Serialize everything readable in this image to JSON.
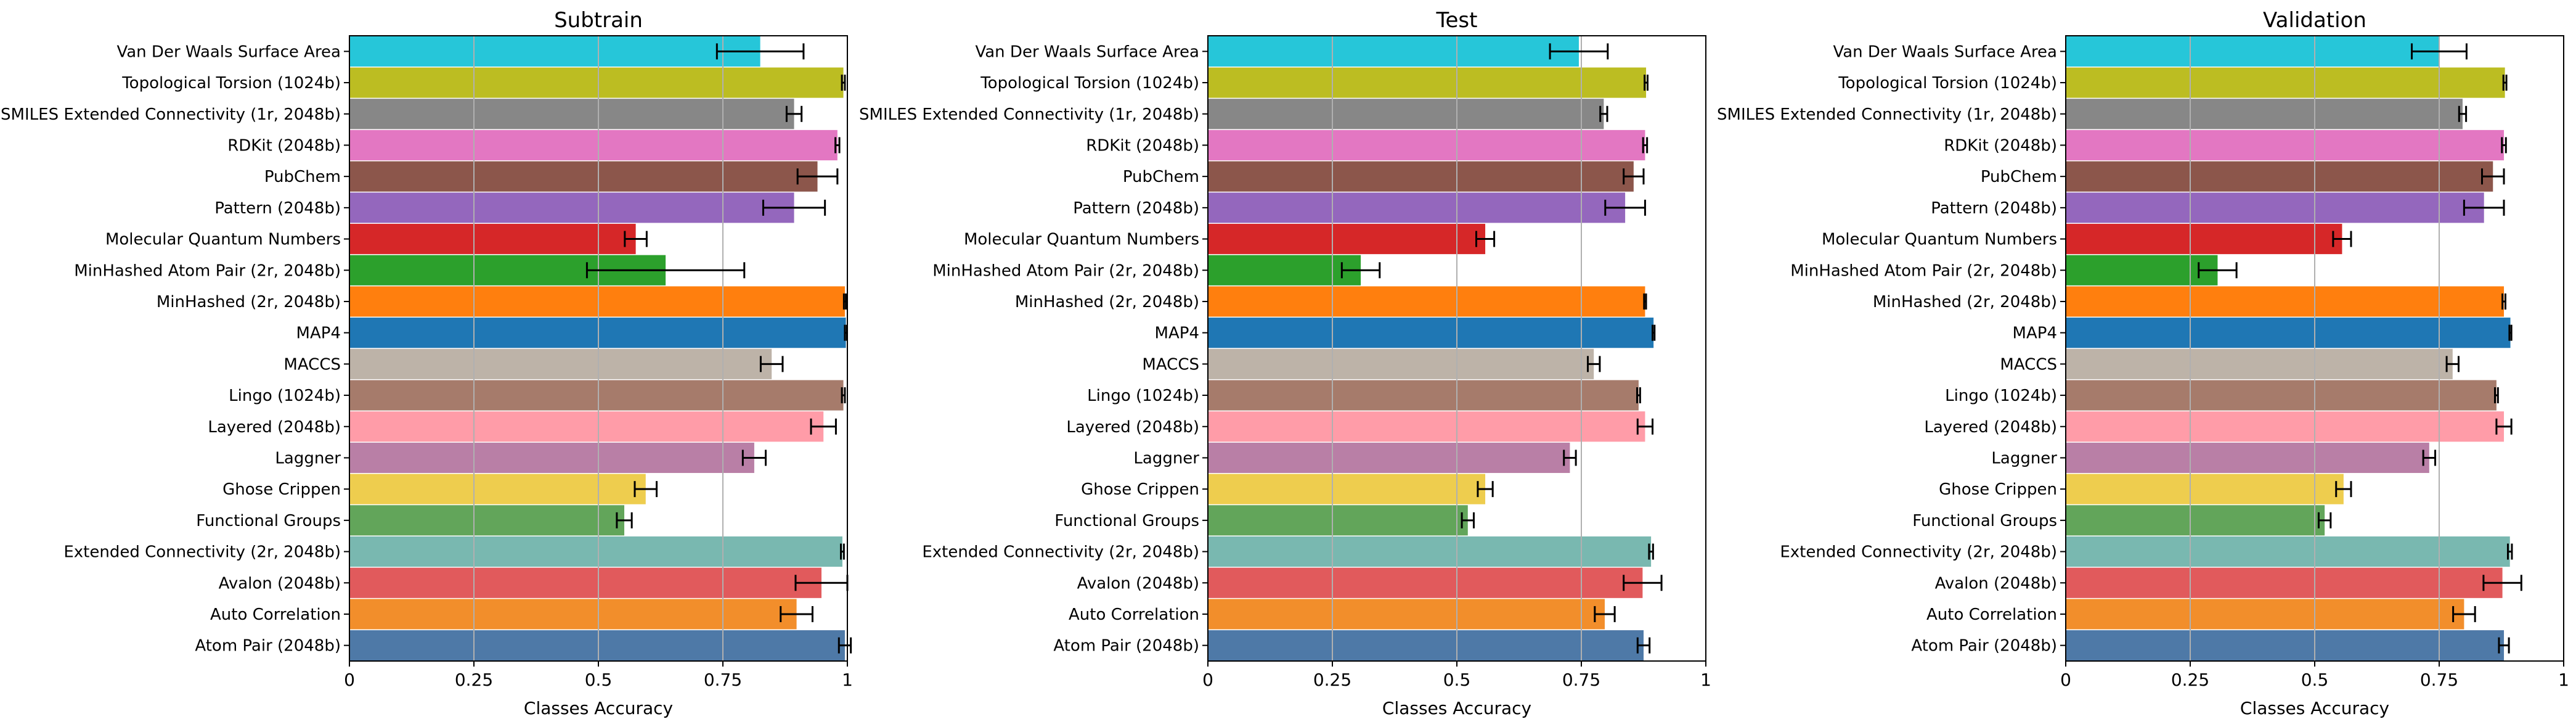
{
  "chart_data": {
    "type": "bar",
    "orientation": "horizontal",
    "xlim": [
      0,
      1
    ],
    "xticks": [
      "0",
      "0.25",
      "0.5",
      "0.75",
      "1"
    ],
    "xtick_values": [
      0,
      0.25,
      0.5,
      0.75,
      1
    ],
    "grid": "x",
    "categories": [
      "Van Der Waals Surface Area",
      "Topological Torsion (1024b)",
      "SMILES Extended Connectivity (1r, 2048b)",
      "RDKit (2048b)",
      "PubChem",
      "Pattern (2048b)",
      "Molecular Quantum Numbers",
      "MinHashed Atom Pair (2r, 2048b)",
      "MinHashed (2r, 2048b)",
      "MAP4",
      "MACCS",
      "Lingo (1024b)",
      "Layered (2048b)",
      "Laggner",
      "Ghose Crippen",
      "Functional Groups",
      "Extended Connectivity (2r, 2048b)",
      "Avalon (2048b)",
      "Auto Correlation",
      "Atom Pair (2048b)"
    ],
    "colors": [
      "#26c6d9",
      "#bcbd22",
      "#878787",
      "#e377c2",
      "#8c564b",
      "#9467bd",
      "#d62728",
      "#2ca02c",
      "#ff7f0e",
      "#1f77b4",
      "#bdb3a8",
      "#a67b6b",
      "#ff9ca8",
      "#b97fa6",
      "#eecd4e",
      "#62a55a",
      "#79b8b0",
      "#e15a5c",
      "#f28e2b",
      "#4e79a7"
    ],
    "panels": [
      {
        "title": "Subtrain",
        "xlabel": "Classes Accuracy",
        "values": [
          0.825,
          0.992,
          0.893,
          0.98,
          0.94,
          0.893,
          0.575,
          0.635,
          0.995,
          0.997,
          0.848,
          0.992,
          0.952,
          0.813,
          0.595,
          0.552,
          0.99,
          0.948,
          0.898,
          0.995
        ],
        "errors": [
          0.087,
          0.003,
          0.015,
          0.004,
          0.04,
          0.062,
          0.022,
          0.158,
          0.002,
          0.002,
          0.022,
          0.003,
          0.025,
          0.023,
          0.022,
          0.015,
          0.003,
          0.052,
          0.032,
          0.012
        ]
      },
      {
        "title": "Test",
        "xlabel": "Classes Accuracy",
        "values": [
          0.745,
          0.88,
          0.795,
          0.878,
          0.855,
          0.838,
          0.557,
          0.307,
          0.878,
          0.895,
          0.775,
          0.865,
          0.878,
          0.727,
          0.557,
          0.522,
          0.89,
          0.873,
          0.797,
          0.875
        ],
        "errors": [
          0.058,
          0.003,
          0.007,
          0.004,
          0.02,
          0.04,
          0.018,
          0.038,
          0.002,
          0.002,
          0.012,
          0.003,
          0.015,
          0.012,
          0.015,
          0.012,
          0.004,
          0.038,
          0.02,
          0.012
        ]
      },
      {
        "title": "Validation",
        "xlabel": "Classes Accuracy",
        "values": [
          0.75,
          0.882,
          0.797,
          0.88,
          0.858,
          0.84,
          0.555,
          0.305,
          0.88,
          0.893,
          0.777,
          0.865,
          0.88,
          0.73,
          0.558,
          0.52,
          0.892,
          0.877,
          0.8,
          0.88
        ],
        "errors": [
          0.055,
          0.003,
          0.007,
          0.004,
          0.022,
          0.04,
          0.018,
          0.038,
          0.003,
          0.002,
          0.012,
          0.003,
          0.015,
          0.012,
          0.015,
          0.012,
          0.004,
          0.038,
          0.022,
          0.01
        ]
      }
    ]
  }
}
